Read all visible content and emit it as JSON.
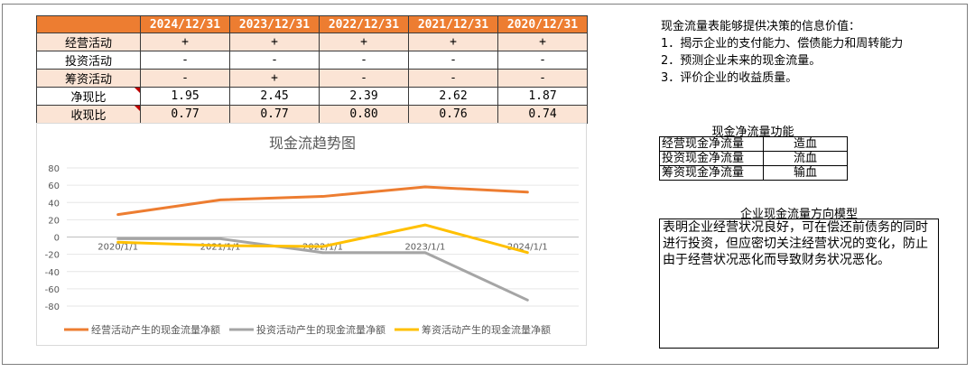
{
  "ratio_table": {
    "years": [
      "2024/12/31",
      "2023/12/31",
      "2022/12/31",
      "2021/12/31",
      "2020/12/31"
    ],
    "rows": [
      {
        "label": "经营活动",
        "values": [
          "+",
          "+",
          "+",
          "+",
          "+"
        ]
      },
      {
        "label": "投资活动",
        "values": [
          "-",
          "-",
          "-",
          "-",
          "-"
        ]
      },
      {
        "label": "筹资活动",
        "values": [
          "-",
          "+",
          "-",
          "-",
          "-"
        ]
      },
      {
        "label": "净现比",
        "values": [
          "1.95",
          "2.45",
          "2.39",
          "2.62",
          "1.87"
        ]
      },
      {
        "label": "收现比",
        "values": [
          "0.77",
          "0.77",
          "0.80",
          "0.76",
          "0.74"
        ]
      }
    ]
  },
  "info": {
    "heading": "现金流量表能够提供决策的信息价值：",
    "items": [
      "1．揭示企业的支付能力、偿债能力和周转能力",
      "2．预测企业未来的现金流量。",
      "3．评价企业的收益质量。"
    ]
  },
  "function_table": {
    "title": "现金净流量功能",
    "rows": [
      {
        "key": "经营现金净流量",
        "value": "造血"
      },
      {
        "key": "投资现金净流量",
        "value": "流血"
      },
      {
        "key": "筹资现金净流量",
        "value": "输血"
      }
    ]
  },
  "model": {
    "title": "企业现金流量方向模型",
    "text": "表明企业经营状况良好，可在偿还前债务的同时进行投资，但应密切关注经营状况的变化，防止由于经营状况恶化而导致财务状况恶化。"
  },
  "colors": {
    "operating": "#ed7d31",
    "investing": "#a5a5a5",
    "financing": "#ffc000",
    "header": "#ed7d31",
    "light_row": "#fbe4d5"
  },
  "chart_data": {
    "type": "line",
    "title": "现金流趋势图",
    "x": [
      "2020/1/1",
      "2021/1/1",
      "2022/1/1",
      "2023/1/1",
      "2024/1/1"
    ],
    "ylim": [
      -80,
      80
    ],
    "yticks": [
      80,
      60,
      40,
      20,
      0,
      -20,
      -40,
      -60,
      -80
    ],
    "grid": true,
    "legend": "bottom",
    "series": [
      {
        "name": "经营活动产生的现金流量净额",
        "color": "#ed7d31",
        "values": [
          26,
          43,
          47,
          58,
          52
        ]
      },
      {
        "name": "投资活动产生的现金流量净额",
        "color": "#a5a5a5",
        "values": [
          -2,
          -2,
          -18,
          -18,
          -73
        ]
      },
      {
        "name": "筹资活动产生的现金流量净额",
        "color": "#ffc000",
        "values": [
          -6,
          -10,
          -11,
          14,
          -18
        ]
      }
    ]
  }
}
